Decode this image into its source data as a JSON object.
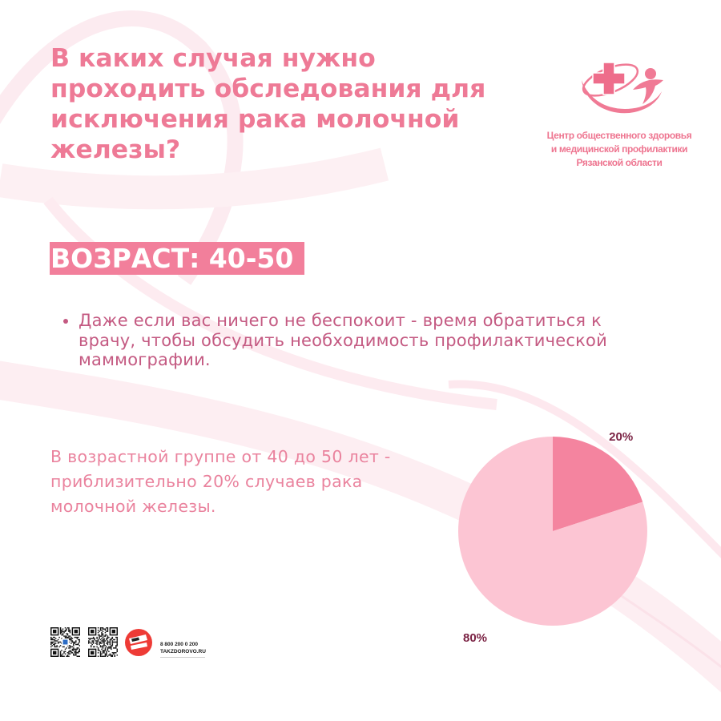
{
  "title_lines": [
    "В каких случая нужно",
    "проходить обследования для",
    "исключения рака молочной",
    "железы?"
  ],
  "org": {
    "lines": [
      "Центр общественного здоровья",
      "и медицинской профилактики",
      "Рязанской области"
    ],
    "logo_icon": "medical-cross-figure-logo"
  },
  "age_badge": "ВОЗРАСТ: 40-50",
  "bullet_lines": [
    "Даже если вас ничего не беспокоит - время обратиться к",
    "врачу, чтобы обсудить необходимость профилактической",
    "маммографии."
  ],
  "stat_lines": [
    "В возрастной группе от 40 до 50 лет -",
    "приблизительно 20% случаев рака",
    "молочной железы."
  ],
  "chart_data": {
    "type": "pie",
    "values": [
      20,
      80
    ],
    "labels": [
      "20%",
      "80%"
    ],
    "colors": [
      "#f4849f",
      "#fcc5d3"
    ],
    "label_color": "#7b2344"
  },
  "footer": {
    "phone": "8 800 200 0 200",
    "site": "TAKZDOROVO.RU",
    "icons": [
      "qr-code-icon",
      "qr-code-icon",
      "tak-zdorovo-logo"
    ]
  },
  "colors": {
    "title": "#ee7a96",
    "badge": "#f27f9b",
    "bullet_text": "#c45a82",
    "stat_text": "#ea839e",
    "ribbon": "#fbe4ea"
  }
}
